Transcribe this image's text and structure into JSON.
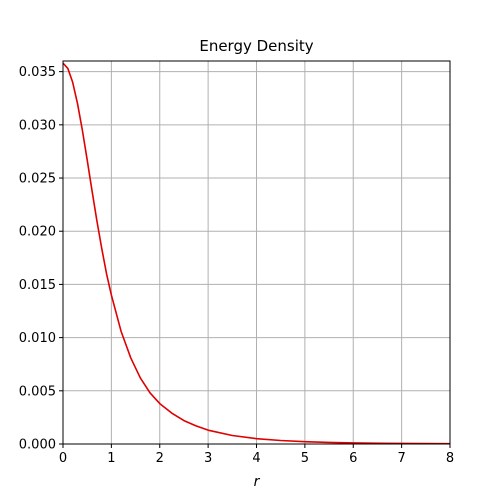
{
  "chart_data": {
    "type": "line",
    "title": "Energy Density",
    "xlabel": "r",
    "ylabel": "",
    "xlim": [
      0,
      8
    ],
    "ylim": [
      0,
      0.036
    ],
    "xticks": [
      0,
      1,
      2,
      3,
      4,
      5,
      6,
      7,
      8
    ],
    "yticks": [
      0.0,
      0.005,
      0.01,
      0.015,
      0.02,
      0.025,
      0.03,
      0.035
    ],
    "xtick_labels": [
      "0",
      "1",
      "2",
      "3",
      "4",
      "5",
      "6",
      "7",
      "8"
    ],
    "ytick_labels": [
      "0.000",
      "0.005",
      "0.010",
      "0.015",
      "0.020",
      "0.025",
      "0.030",
      "0.035"
    ],
    "grid": true,
    "series": [
      {
        "color": "#e00000",
        "x": [
          0,
          0.1,
          0.2,
          0.3,
          0.4,
          0.5,
          0.6,
          0.7,
          0.8,
          0.9,
          1.0,
          1.2,
          1.4,
          1.6,
          1.8,
          2.0,
          2.25,
          2.5,
          2.75,
          3.0,
          3.5,
          4.0,
          4.5,
          5.0,
          5.5,
          6.0,
          7.0,
          8.0
        ],
        "y": [
          0.0358,
          0.0353,
          0.034,
          0.032,
          0.0295,
          0.0267,
          0.0238,
          0.021,
          0.0184,
          0.016,
          0.014,
          0.0106,
          0.0081,
          0.0062,
          0.0048,
          0.0038,
          0.0029,
          0.0022,
          0.0017,
          0.0013,
          0.0008,
          0.0005,
          0.00033,
          0.00022,
          0.00015,
          0.0001,
          5e-05,
          3e-05
        ]
      }
    ]
  }
}
